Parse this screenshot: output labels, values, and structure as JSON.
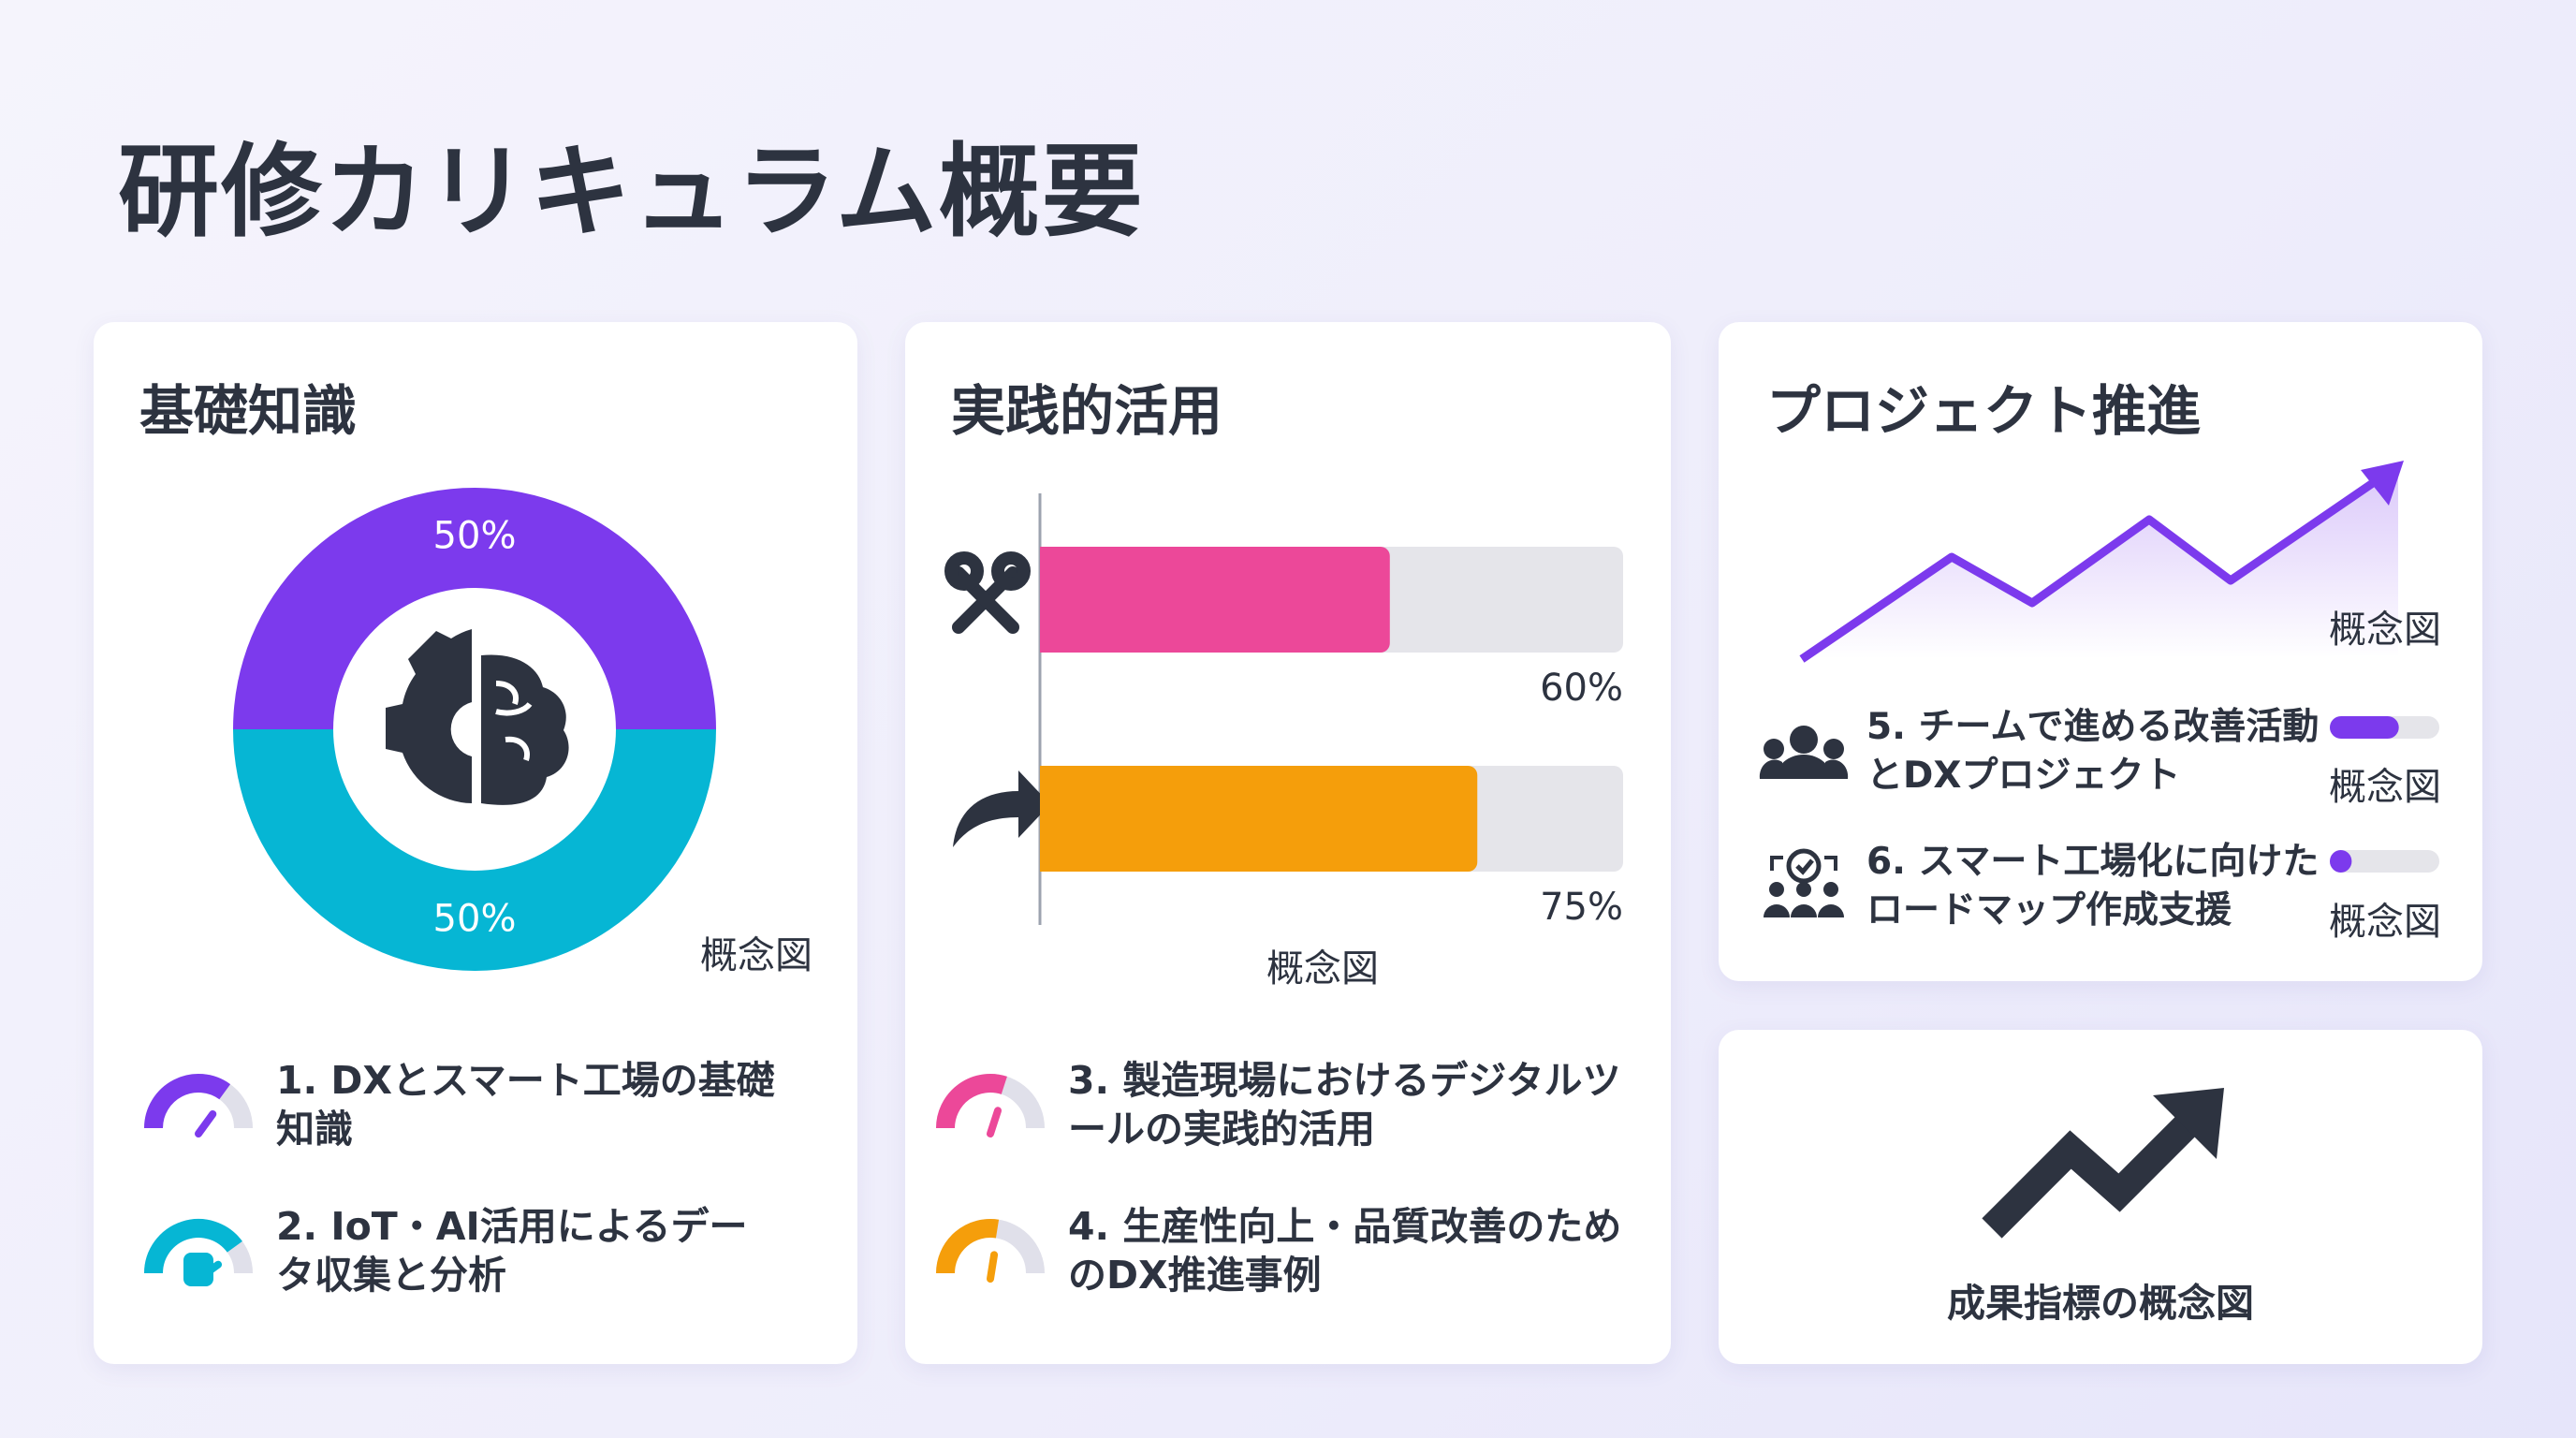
{
  "title": "研修カリキュラム概要",
  "cards": [
    {
      "title": "基礎知識",
      "donut": {
        "values": [
          50,
          50
        ],
        "value_labels": [
          "50%",
          "50%"
        ],
        "colors": [
          "#7c3aed",
          "#06b6d4"
        ]
      },
      "caption": "概念図",
      "items": [
        {
          "text": "1. DXとスマート工場の基礎知識"
        },
        {
          "text": "2. IoT・AI活用によるデータ収集と分析"
        }
      ]
    },
    {
      "title": "実践的活用",
      "bars": {
        "values": [
          60,
          75
        ],
        "value_labels": [
          "60%",
          "75%"
        ],
        "colors": [
          "#ec4899",
          "#f59e0b"
        ],
        "xlim": [
          0,
          100
        ]
      },
      "caption": "概念図",
      "items": [
        {
          "text": "3. 製造現場におけるデジタルツールの実践的活用"
        },
        {
          "text": "4. 生産性向上・品質改善のためのDX推進事例"
        }
      ]
    },
    {
      "title": "プロジェクト推進",
      "caption": "概念図",
      "xlim": [
        0,
        100
      ],
      "color": "#7c3aed",
      "items": [
        {
          "text": "5. チームで進める改善活動とDXプロジェクト",
          "progress": 63,
          "caption": "概念図"
        },
        {
          "text": "6. スマート工場化に向けたロードマップ作成支援",
          "progress": 20,
          "caption": "概念図"
        }
      ]
    },
    {
      "caption": "成果指標の概念図"
    }
  ]
}
